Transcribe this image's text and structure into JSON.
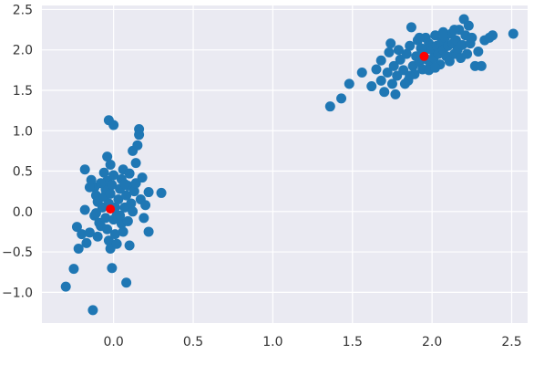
{
  "chart_data": {
    "type": "scatter",
    "title": "",
    "xlabel": "",
    "ylabel": "",
    "xlim": [
      -0.45,
      2.6
    ],
    "ylim": [
      -1.38,
      2.55
    ],
    "x_ticks": [
      0.0,
      0.5,
      1.0,
      1.5,
      2.0,
      2.5
    ],
    "x_tick_labels": [
      "0.0",
      "0.5",
      "1.0",
      "1.5",
      "2.0",
      "2.5"
    ],
    "y_ticks": [
      -1.0,
      -0.5,
      0.0,
      0.5,
      1.0,
      1.5,
      2.0,
      2.5
    ],
    "y_tick_labels": [
      "−1.0",
      "−0.5",
      "0.0",
      "0.5",
      "1.0",
      "1.5",
      "2.0",
      "2.5"
    ],
    "grid": true,
    "legend": "none",
    "style": {
      "background": "#eaeaf2",
      "grid_color": "#ffffff",
      "point_color": "#1f77b4",
      "center_color": "#ff0000"
    },
    "series": [
      {
        "color": "#1f77b4",
        "points": [
          [
            -0.3,
            -0.93
          ],
          [
            -0.25,
            -0.71
          ],
          [
            -0.22,
            -0.46
          ],
          [
            -0.23,
            -0.19
          ],
          [
            -0.2,
            -0.28
          ],
          [
            -0.17,
            -0.39
          ],
          [
            -0.18,
            0.02
          ],
          [
            -0.15,
            -0.26
          ],
          [
            -0.13,
            -1.22
          ],
          [
            -0.18,
            0.52
          ],
          [
            -0.14,
            0.39
          ],
          [
            -0.12,
            0.3
          ],
          [
            -0.11,
            0.2
          ],
          [
            -0.1,
            0.12
          ],
          [
            -0.12,
            -0.05
          ],
          [
            -0.09,
            -0.14
          ],
          [
            -0.1,
            -0.31
          ],
          [
            -0.08,
            -0.18
          ],
          [
            -0.07,
            0.05
          ],
          [
            -0.06,
            0.18
          ],
          [
            -0.05,
            0.27
          ],
          [
            -0.04,
            0.38
          ],
          [
            -0.06,
            0.48
          ],
          [
            -0.05,
            -0.08
          ],
          [
            -0.04,
            -0.22
          ],
          [
            -0.03,
            -0.36
          ],
          [
            -0.02,
            -0.46
          ],
          [
            -0.03,
            0.1
          ],
          [
            -0.02,
            0.22
          ],
          [
            -0.01,
            0.33
          ],
          [
            0.0,
            0.45
          ],
          [
            -0.02,
            0.58
          ],
          [
            -0.04,
            0.68
          ],
          [
            0.0,
            -0.1
          ],
          [
            0.01,
            -0.28
          ],
          [
            0.02,
            -0.4
          ],
          [
            0.03,
            0.15
          ],
          [
            0.04,
            0.28
          ],
          [
            0.05,
            0.4
          ],
          [
            0.06,
            0.52
          ],
          [
            0.02,
            -0.05
          ],
          [
            0.05,
            -0.15
          ],
          [
            0.07,
            0.05
          ],
          [
            0.08,
            0.2
          ],
          [
            0.09,
            0.32
          ],
          [
            0.1,
            0.47
          ],
          [
            0.06,
            -0.25
          ],
          [
            0.09,
            -0.12
          ],
          [
            0.11,
            0.1
          ],
          [
            0.12,
            0.0
          ],
          [
            0.13,
            0.25
          ],
          [
            0.14,
            0.6
          ],
          [
            0.12,
            0.75
          ],
          [
            0.15,
            0.82
          ],
          [
            0.16,
            0.95
          ],
          [
            0.16,
            1.02
          ],
          [
            0.14,
            0.35
          ],
          [
            0.17,
            0.15
          ],
          [
            0.18,
            0.42
          ],
          [
            0.19,
            -0.08
          ],
          [
            0.2,
            0.08
          ],
          [
            0.22,
            -0.25
          ],
          [
            0.22,
            0.24
          ],
          [
            0.3,
            0.23
          ],
          [
            0.1,
            -0.42
          ],
          [
            0.08,
            -0.88
          ],
          [
            -0.01,
            -0.7
          ],
          [
            -0.03,
            1.13
          ],
          [
            0.0,
            1.07
          ],
          [
            0.04,
            -0.05
          ],
          [
            -0.15,
            0.3
          ],
          [
            -0.08,
            0.35
          ],
          [
            0.01,
            0.05
          ],
          [
            -0.11,
            -0.02
          ],
          [
            0.07,
            0.34
          ],
          [
            1.36,
            1.3
          ],
          [
            1.43,
            1.4
          ],
          [
            1.48,
            1.58
          ],
          [
            1.56,
            1.72
          ],
          [
            1.62,
            1.55
          ],
          [
            1.65,
            1.76
          ],
          [
            1.68,
            1.62
          ],
          [
            1.68,
            1.87
          ],
          [
            1.7,
            1.48
          ],
          [
            1.72,
            1.72
          ],
          [
            1.73,
            1.97
          ],
          [
            1.74,
            2.08
          ],
          [
            1.75,
            1.58
          ],
          [
            1.76,
            1.8
          ],
          [
            1.77,
            1.45
          ],
          [
            1.78,
            1.68
          ],
          [
            1.8,
            1.88
          ],
          [
            1.82,
            1.75
          ],
          [
            1.84,
            1.95
          ],
          [
            1.85,
            1.62
          ],
          [
            1.86,
            2.05
          ],
          [
            1.87,
            2.28
          ],
          [
            1.88,
            1.8
          ],
          [
            1.89,
            1.7
          ],
          [
            1.9,
            1.92
          ],
          [
            1.91,
            2.12
          ],
          [
            1.92,
            1.85
          ],
          [
            1.93,
            2.02
          ],
          [
            1.94,
            1.76
          ],
          [
            1.95,
            1.98
          ],
          [
            1.96,
            2.15
          ],
          [
            1.97,
            1.88
          ],
          [
            1.98,
            2.08
          ],
          [
            1.99,
            1.8
          ],
          [
            2.0,
            2.0
          ],
          [
            2.01,
            1.9
          ],
          [
            2.02,
            2.18
          ],
          [
            2.03,
            2.05
          ],
          [
            2.04,
            1.95
          ],
          [
            2.05,
            1.82
          ],
          [
            2.06,
            2.1
          ],
          [
            2.07,
            2.0
          ],
          [
            2.08,
            2.15
          ],
          [
            2.09,
            1.92
          ],
          [
            2.1,
            2.05
          ],
          [
            2.11,
            1.86
          ],
          [
            2.12,
            2.2
          ],
          [
            2.13,
            2.08
          ],
          [
            2.14,
            1.95
          ],
          [
            2.15,
            2.12
          ],
          [
            2.16,
            2.0
          ],
          [
            2.17,
            2.25
          ],
          [
            2.18,
            1.9
          ],
          [
            2.19,
            2.06
          ],
          [
            2.2,
            2.38
          ],
          [
            2.21,
            2.18
          ],
          [
            2.22,
            1.95
          ],
          [
            2.23,
            2.3
          ],
          [
            2.24,
            2.08
          ],
          [
            2.25,
            2.15
          ],
          [
            2.27,
            1.8
          ],
          [
            2.29,
            1.98
          ],
          [
            2.31,
            1.8
          ],
          [
            2.33,
            2.12
          ],
          [
            2.36,
            2.15
          ],
          [
            2.38,
            2.18
          ],
          [
            2.51,
            2.2
          ],
          [
            1.98,
            1.75
          ],
          [
            1.86,
            1.68
          ],
          [
            1.79,
            2.0
          ],
          [
            2.02,
            1.78
          ],
          [
            2.14,
            2.25
          ],
          [
            1.92,
            2.15
          ],
          [
            2.07,
            2.22
          ],
          [
            1.83,
            1.58
          ]
        ]
      },
      {
        "color": "#ff0000",
        "points": [
          [
            -0.02,
            0.03
          ],
          [
            1.95,
            1.92
          ]
        ]
      }
    ]
  }
}
